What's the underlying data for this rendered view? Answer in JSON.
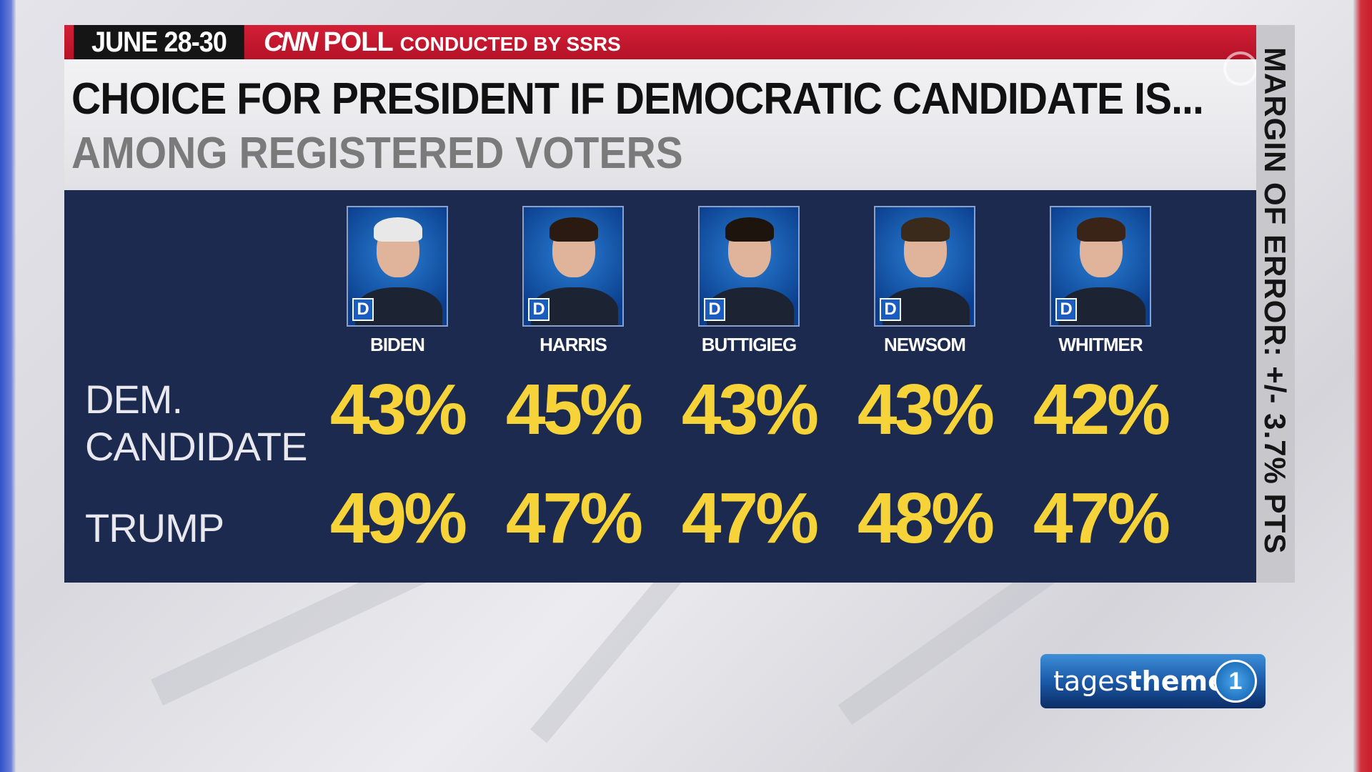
{
  "header": {
    "date": "JUNE 28-30",
    "network": "CNN",
    "poll": "POLL",
    "conducted_by": "CONDUCTED BY SSRS"
  },
  "title": "CHOICE FOR PRESIDENT IF DEMOCRATIC CANDIDATE IS...",
  "subtitle": "AMONG REGISTERED VOTERS",
  "margin_of_error": "MARGIN OF ERROR: +/- 3.7% PTS",
  "row_labels": {
    "dem": "DEM. CANDIDATE",
    "trump": "TRUMP"
  },
  "candidates": [
    {
      "name": "BIDEN",
      "party": "D",
      "dem": "43%",
      "trump": "49%"
    },
    {
      "name": "HARRIS",
      "party": "D",
      "dem": "45%",
      "trump": "47%"
    },
    {
      "name": "BUTTIGIEG",
      "party": "D",
      "dem": "43%",
      "trump": "47%"
    },
    {
      "name": "NEWSOM",
      "party": "D",
      "dem": "43%",
      "trump": "48%"
    },
    {
      "name": "WHITMER",
      "party": "D",
      "dem": "42%",
      "trump": "47%"
    }
  ],
  "logo": {
    "light": "tages",
    "bold": "themen",
    "mark": "1"
  },
  "colors": {
    "red": "#c8172e",
    "navy": "#1b2a4e",
    "yellow": "#f7d33a",
    "gray_sub": "#7a7a7a"
  }
}
